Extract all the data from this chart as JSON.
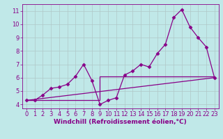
{
  "x": [
    0,
    1,
    2,
    3,
    4,
    5,
    6,
    7,
    8,
    9,
    10,
    11,
    12,
    13,
    14,
    15,
    16,
    17,
    18,
    19,
    20,
    21,
    22,
    23
  ],
  "y_data": [
    4.3,
    4.3,
    4.7,
    5.2,
    5.3,
    5.5,
    6.1,
    7.0,
    5.8,
    4.0,
    4.3,
    4.5,
    6.2,
    6.5,
    7.0,
    6.8,
    7.8,
    8.5,
    10.5,
    11.1,
    9.8,
    9.0,
    8.3,
    6.0
  ],
  "trend1_x": [
    0,
    9,
    9,
    23
  ],
  "trend1_y": [
    4.3,
    4.3,
    6.1,
    6.1
  ],
  "trend2_x": [
    0,
    23
  ],
  "trend2_y": [
    4.3,
    6.0
  ],
  "background_color": "#c0e8e8",
  "line_color": "#880088",
  "grid_color": "#b0c8c8",
  "xlabel": "Windchill (Refroidissement éolien,°C)",
  "ylim": [
    3.7,
    11.5
  ],
  "xlim": [
    -0.5,
    23.5
  ],
  "yticks": [
    4,
    5,
    6,
    7,
    8,
    9,
    10,
    11
  ],
  "xticks": [
    0,
    1,
    2,
    3,
    4,
    5,
    6,
    7,
    8,
    9,
    10,
    11,
    12,
    13,
    14,
    15,
    16,
    17,
    18,
    19,
    20,
    21,
    22,
    23
  ],
  "xlabel_fontsize": 6.5,
  "tick_fontsize": 6.0,
  "marker": "D",
  "markersize": 2.5
}
